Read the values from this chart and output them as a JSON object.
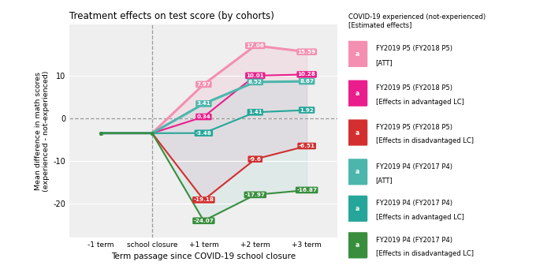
{
  "title": "Treatment effects on test score (by cohorts)",
  "xlabel": "Term passage since COVID-19 school closure",
  "ylabel": "Mean difference in math scores\n(experienced - not-experienced)",
  "x_positions": [
    -1,
    0,
    1,
    2,
    3
  ],
  "x_labels": [
    "-1 term",
    "school closure",
    "+1 term",
    "+2 term",
    "+3 term"
  ],
  "series": [
    {
      "name": "FY2019 P5 (FY2018 P5)\n[ATT]",
      "color": "#f48fb1",
      "linewidth": 2.2,
      "values": [
        -3.5,
        -3.5,
        7.97,
        17.06,
        15.59
      ]
    },
    {
      "name": "FY2019 P5 (FY2018 P5)\n[Effects in advantaged LC]",
      "color": "#e91e8c",
      "linewidth": 1.5,
      "values": [
        -3.5,
        -3.5,
        0.34,
        10.01,
        10.28
      ]
    },
    {
      "name": "FY2019 P5 (FY2018 P5)\n[Effects in disadvantaged LC]",
      "color": "#d32f2f",
      "linewidth": 1.5,
      "values": [
        -3.5,
        -3.5,
        -19.18,
        -9.6,
        -6.51
      ]
    },
    {
      "name": "FY2019 P4 (FY2017 P4)\n[ATT]",
      "color": "#4db6ac",
      "linewidth": 2.2,
      "values": [
        -3.5,
        -3.5,
        3.41,
        8.52,
        8.67
      ]
    },
    {
      "name": "FY2019 P4 (FY2017 P4)\n[Effects in advantaged LC]",
      "color": "#26a69a",
      "linewidth": 1.5,
      "values": [
        -3.5,
        -3.5,
        -3.48,
        1.41,
        1.92
      ]
    },
    {
      "name": "FY2019 P4 (FY2017 P4)\n[Effects in disadvantaged LC]",
      "color": "#388e3c",
      "linewidth": 1.5,
      "values": [
        -3.5,
        -3.5,
        -24.07,
        -17.97,
        -16.87
      ]
    }
  ],
  "fill_pink": {
    "color": "#f48fb1",
    "alpha": 0.15
  },
  "fill_green": {
    "color": "#80cbc4",
    "alpha": 0.15
  },
  "ylim": [
    -28,
    22
  ],
  "yticks": [
    -20,
    -10,
    0,
    10
  ],
  "legend_title": "COVID-19 experienced (not-experienced)\n[Estimated effects]",
  "legend_items": [
    {
      "label": "FY2019 P5 (FY2018 P5)\n[ATT]",
      "color": "#f48fb1"
    },
    {
      "label": "FY2019 P5 (FY2018 P5)\n[Effects in advantaged LC]",
      "color": "#e91e8c"
    },
    {
      "label": "FY2019 P5 (FY2018 P5)\n[Effects in disadvantaged LC]",
      "color": "#d32f2f"
    },
    {
      "label": "FY2019 P4 (FY2017 P4)\n[ATT]",
      "color": "#4db6ac"
    },
    {
      "label": "FY2019 P4 (FY2017 P4)\n[Effects in advantaged LC]",
      "color": "#26a69a"
    },
    {
      "label": "FY2019 P4 (FY2017 P4)\n[Effects in disadvantaged LC]",
      "color": "#388e3c"
    }
  ],
  "label_data": [
    {
      "si": 0,
      "txt": "7.97",
      "xp": 1,
      "yp": 7.97
    },
    {
      "si": 0,
      "txt": "17.06",
      "xp": 2,
      "yp": 17.06
    },
    {
      "si": 0,
      "txt": "15.59",
      "xp": 3,
      "yp": 15.59
    },
    {
      "si": 1,
      "txt": "0.34",
      "xp": 1,
      "yp": 0.34
    },
    {
      "si": 1,
      "txt": "10.01",
      "xp": 2,
      "yp": 10.01
    },
    {
      "si": 1,
      "txt": "10.28",
      "xp": 3,
      "yp": 10.28
    },
    {
      "si": 2,
      "txt": "-19.18",
      "xp": 1,
      "yp": -19.18
    },
    {
      "si": 2,
      "txt": "-9.6",
      "xp": 2,
      "yp": -9.6
    },
    {
      "si": 2,
      "txt": "-6.51",
      "xp": 3,
      "yp": -6.51
    },
    {
      "si": 3,
      "txt": "3.41",
      "xp": 1,
      "yp": 3.41
    },
    {
      "si": 3,
      "txt": "8.52",
      "xp": 2,
      "yp": 8.52
    },
    {
      "si": 3,
      "txt": "8.67",
      "xp": 3,
      "yp": 8.67
    },
    {
      "si": 4,
      "txt": "-3.48",
      "xp": 1,
      "yp": -3.48
    },
    {
      "si": 4,
      "txt": "1.41",
      "xp": 2,
      "yp": 1.41
    },
    {
      "si": 4,
      "txt": "1.92",
      "xp": 3,
      "yp": 1.92
    },
    {
      "si": 5,
      "txt": "-24.07",
      "xp": 1,
      "yp": -24.07
    },
    {
      "si": 5,
      "txt": "-17.97",
      "xp": 2,
      "yp": -17.97
    },
    {
      "si": 5,
      "txt": "-16.87",
      "xp": 3,
      "yp": -16.87
    }
  ],
  "background_color": "#efefef"
}
